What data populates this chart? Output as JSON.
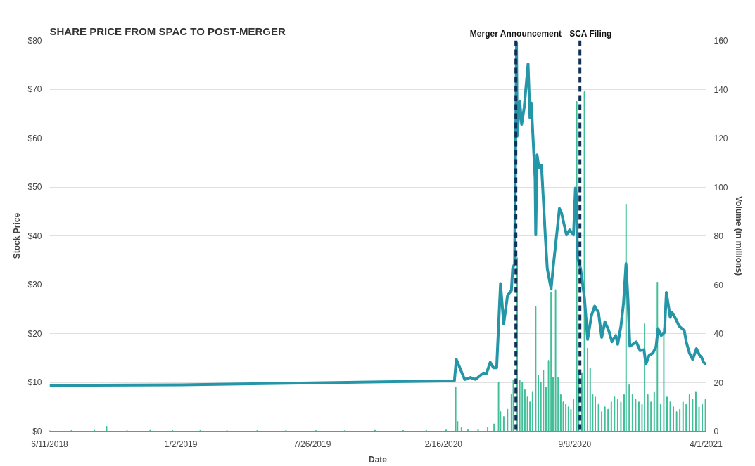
{
  "chart_data": {
    "type": "line",
    "title": "SHARE PRICE FROM SPAC TO POST-MERGER",
    "xlabel": "Date",
    "ylabel": "Stock Price",
    "y2label": "Volume (in millions)",
    "xlim": [
      "2018-06-11",
      "2021-04-01"
    ],
    "xticks": [
      {
        "value": "2018-06-11",
        "label": "6/11/2018"
      },
      {
        "value": "2019-01-02",
        "label": "1/2/2019"
      },
      {
        "value": "2019-07-26",
        "label": "7/26/2019"
      },
      {
        "value": "2020-02-16",
        "label": "2/16/2020"
      },
      {
        "value": "2020-09-08",
        "label": "9/8/2020"
      },
      {
        "value": "2021-04-01",
        "label": "4/1/2021"
      }
    ],
    "ylim": [
      0,
      80
    ],
    "yticks": [
      {
        "value": 0,
        "label": "$0"
      },
      {
        "value": 10,
        "label": "$10"
      },
      {
        "value": 20,
        "label": "$20"
      },
      {
        "value": 30,
        "label": "$30"
      },
      {
        "value": 40,
        "label": "$40"
      },
      {
        "value": 50,
        "label": "$50"
      },
      {
        "value": 60,
        "label": "$60"
      },
      {
        "value": 70,
        "label": "$70"
      },
      {
        "value": 80,
        "label": "$80"
      }
    ],
    "y2lim": [
      0,
      160
    ],
    "y2ticks": [
      0,
      20,
      40,
      60,
      80,
      100,
      120,
      140,
      160
    ],
    "grid": "y",
    "marker": "none",
    "ref_lines": [
      {
        "axis": "x",
        "value": "2020-06-08",
        "label": "Merger Announcement",
        "color": "#10305a",
        "line_style": "dashed"
      },
      {
        "axis": "x",
        "value": "2020-09-16",
        "label": "SCA Filing",
        "color": "#10305a",
        "line_style": "dashed"
      }
    ],
    "series": [
      {
        "type": "bar",
        "axis": "y2",
        "color": "#3dbd95",
        "x": [
          "2018-06-11",
          "2018-07-15",
          "2018-08-20",
          "2018-09-08",
          "2018-10-10",
          "2018-11-15",
          "2018-12-20",
          "2019-02-01",
          "2019-03-15",
          "2019-05-01",
          "2019-06-15",
          "2019-08-01",
          "2019-09-15",
          "2019-11-01",
          "2019-12-15",
          "2020-01-20",
          "2020-02-20",
          "2020-03-06",
          "2020-03-09",
          "2020-03-15",
          "2020-03-25",
          "2020-04-10",
          "2020-04-25",
          "2020-05-05",
          "2020-05-12",
          "2020-05-15",
          "2020-05-20",
          "2020-05-26",
          "2020-06-01",
          "2020-06-04",
          "2020-06-10",
          "2020-06-14",
          "2020-06-18",
          "2020-06-22",
          "2020-06-26",
          "2020-06-30",
          "2020-07-04",
          "2020-07-09",
          "2020-07-13",
          "2020-07-17",
          "2020-07-21",
          "2020-07-25",
          "2020-07-29",
          "2020-08-02",
          "2020-08-05",
          "2020-08-09",
          "2020-08-13",
          "2020-08-17",
          "2020-08-21",
          "2020-08-25",
          "2020-08-29",
          "2020-09-02",
          "2020-09-06",
          "2020-09-11",
          "2020-09-14",
          "2020-09-19",
          "2020-09-23",
          "2020-09-28",
          "2020-10-02",
          "2020-10-06",
          "2020-10-10",
          "2020-10-15",
          "2020-10-20",
          "2020-10-25",
          "2020-10-30",
          "2020-11-04",
          "2020-11-09",
          "2020-11-14",
          "2020-11-19",
          "2020-11-24",
          "2020-11-27",
          "2020-12-02",
          "2020-12-07",
          "2020-12-12",
          "2020-12-17",
          "2020-12-22",
          "2020-12-26",
          "2020-12-31",
          "2021-01-05",
          "2021-01-10",
          "2021-01-15",
          "2021-01-20",
          "2021-01-25",
          "2021-01-30",
          "2021-02-04",
          "2021-02-09",
          "2021-02-14",
          "2021-02-19",
          "2021-02-24",
          "2021-03-01",
          "2021-03-06",
          "2021-03-11",
          "2021-03-16",
          "2021-03-21",
          "2021-03-26",
          "2021-03-31"
        ],
        "values": [
          0.3,
          0.3,
          0.4,
          2.0,
          0.3,
          0.4,
          0.3,
          0.3,
          0.3,
          0.3,
          0.4,
          0.3,
          0.3,
          0.4,
          0.3,
          0.4,
          0.5,
          18,
          4,
          1.5,
          0.6,
          0.8,
          1.5,
          3,
          20,
          8,
          6,
          9,
          15,
          21,
          71,
          21,
          20,
          17,
          14,
          12,
          16,
          51,
          23,
          20,
          25,
          18,
          29,
          57,
          22,
          58,
          22,
          15,
          12,
          11,
          10,
          9,
          13,
          135,
          25,
          24,
          139,
          34,
          26,
          15,
          14,
          11,
          8,
          10,
          9,
          12,
          14,
          13,
          12,
          15,
          93,
          19,
          15,
          13,
          12,
          11,
          44,
          15,
          12,
          16,
          61,
          11,
          42,
          14,
          12,
          10,
          8,
          9,
          12,
          11,
          15,
          13,
          16,
          10,
          11,
          13
        ]
      },
      {
        "color": "#2596a8",
        "x": [
          "2018-06-11",
          "2019-01-02",
          "2019-07-26",
          "2020-02-16",
          "2020-03-04",
          "2020-03-07",
          "2020-03-20",
          "2020-03-29",
          "2020-04-06",
          "2020-04-18",
          "2020-04-23",
          "2020-04-29",
          "2020-05-04",
          "2020-05-09",
          "2020-05-15",
          "2020-05-20",
          "2020-05-26",
          "2020-06-01",
          "2020-06-03",
          "2020-06-06",
          "2020-06-09",
          "2020-06-10",
          "2020-06-14",
          "2020-06-17",
          "2020-06-21",
          "2020-06-27",
          "2020-06-30",
          "2020-07-02",
          "2020-07-08",
          "2020-07-09",
          "2020-07-11",
          "2020-07-14",
          "2020-07-18",
          "2020-07-24",
          "2020-07-27",
          "2020-08-02",
          "2020-08-05",
          "2020-08-11",
          "2020-08-15",
          "2020-08-18",
          "2020-08-26",
          "2020-08-31",
          "2020-09-06",
          "2020-09-09",
          "2020-09-11",
          "2020-09-12",
          "2020-09-17",
          "2020-09-23",
          "2020-09-28",
          "2020-10-04",
          "2020-10-09",
          "2020-10-15",
          "2020-10-20",
          "2020-10-25",
          "2020-10-31",
          "2020-11-05",
          "2020-11-11",
          "2020-11-14",
          "2020-11-19",
          "2020-11-23",
          "2020-11-27",
          "2020-11-30",
          "2020-12-03",
          "2020-12-13",
          "2020-12-19",
          "2020-12-25",
          "2020-12-28",
          "2021-01-02",
          "2021-01-08",
          "2021-01-13",
          "2021-01-16",
          "2021-01-21",
          "2021-01-26",
          "2021-01-29",
          "2021-02-04",
          "2021-02-07",
          "2021-02-13",
          "2021-02-18",
          "2021-02-26",
          "2021-03-01",
          "2021-03-06",
          "2021-03-11",
          "2021-03-17",
          "2021-03-22",
          "2021-03-25",
          "2021-03-28",
          "2021-04-01"
        ],
        "values": [
          9.4,
          9.5,
          9.9,
          10.3,
          10.3,
          14.7,
          10.6,
          11.0,
          10.6,
          11.9,
          11.8,
          14.1,
          13.0,
          13.0,
          30.2,
          22.0,
          27.8,
          28.8,
          33.3,
          34.3,
          79.5,
          60.4,
          67.6,
          62.8,
          66.3,
          75.2,
          64.1,
          67.2,
          51.7,
          40.2,
          56.6,
          53.9,
          54.4,
          39.8,
          33.3,
          29.1,
          33.3,
          40.6,
          45.6,
          44.8,
          40.2,
          41.2,
          40.2,
          49.8,
          47.6,
          35.7,
          33.3,
          27.4,
          18.8,
          23.7,
          25.6,
          24.3,
          19.2,
          22.4,
          20.6,
          18.3,
          19.6,
          17.8,
          21.5,
          26.1,
          34.3,
          27.0,
          17.4,
          18.3,
          16.5,
          16.7,
          13.7,
          15.5,
          16.0,
          17.4,
          21.0,
          19.6,
          20.2,
          28.4,
          23.3,
          24.3,
          22.9,
          21.5,
          20.6,
          18.3,
          16.0,
          14.7,
          16.9,
          15.5,
          15.1,
          14.1,
          13.7
        ]
      }
    ]
  }
}
